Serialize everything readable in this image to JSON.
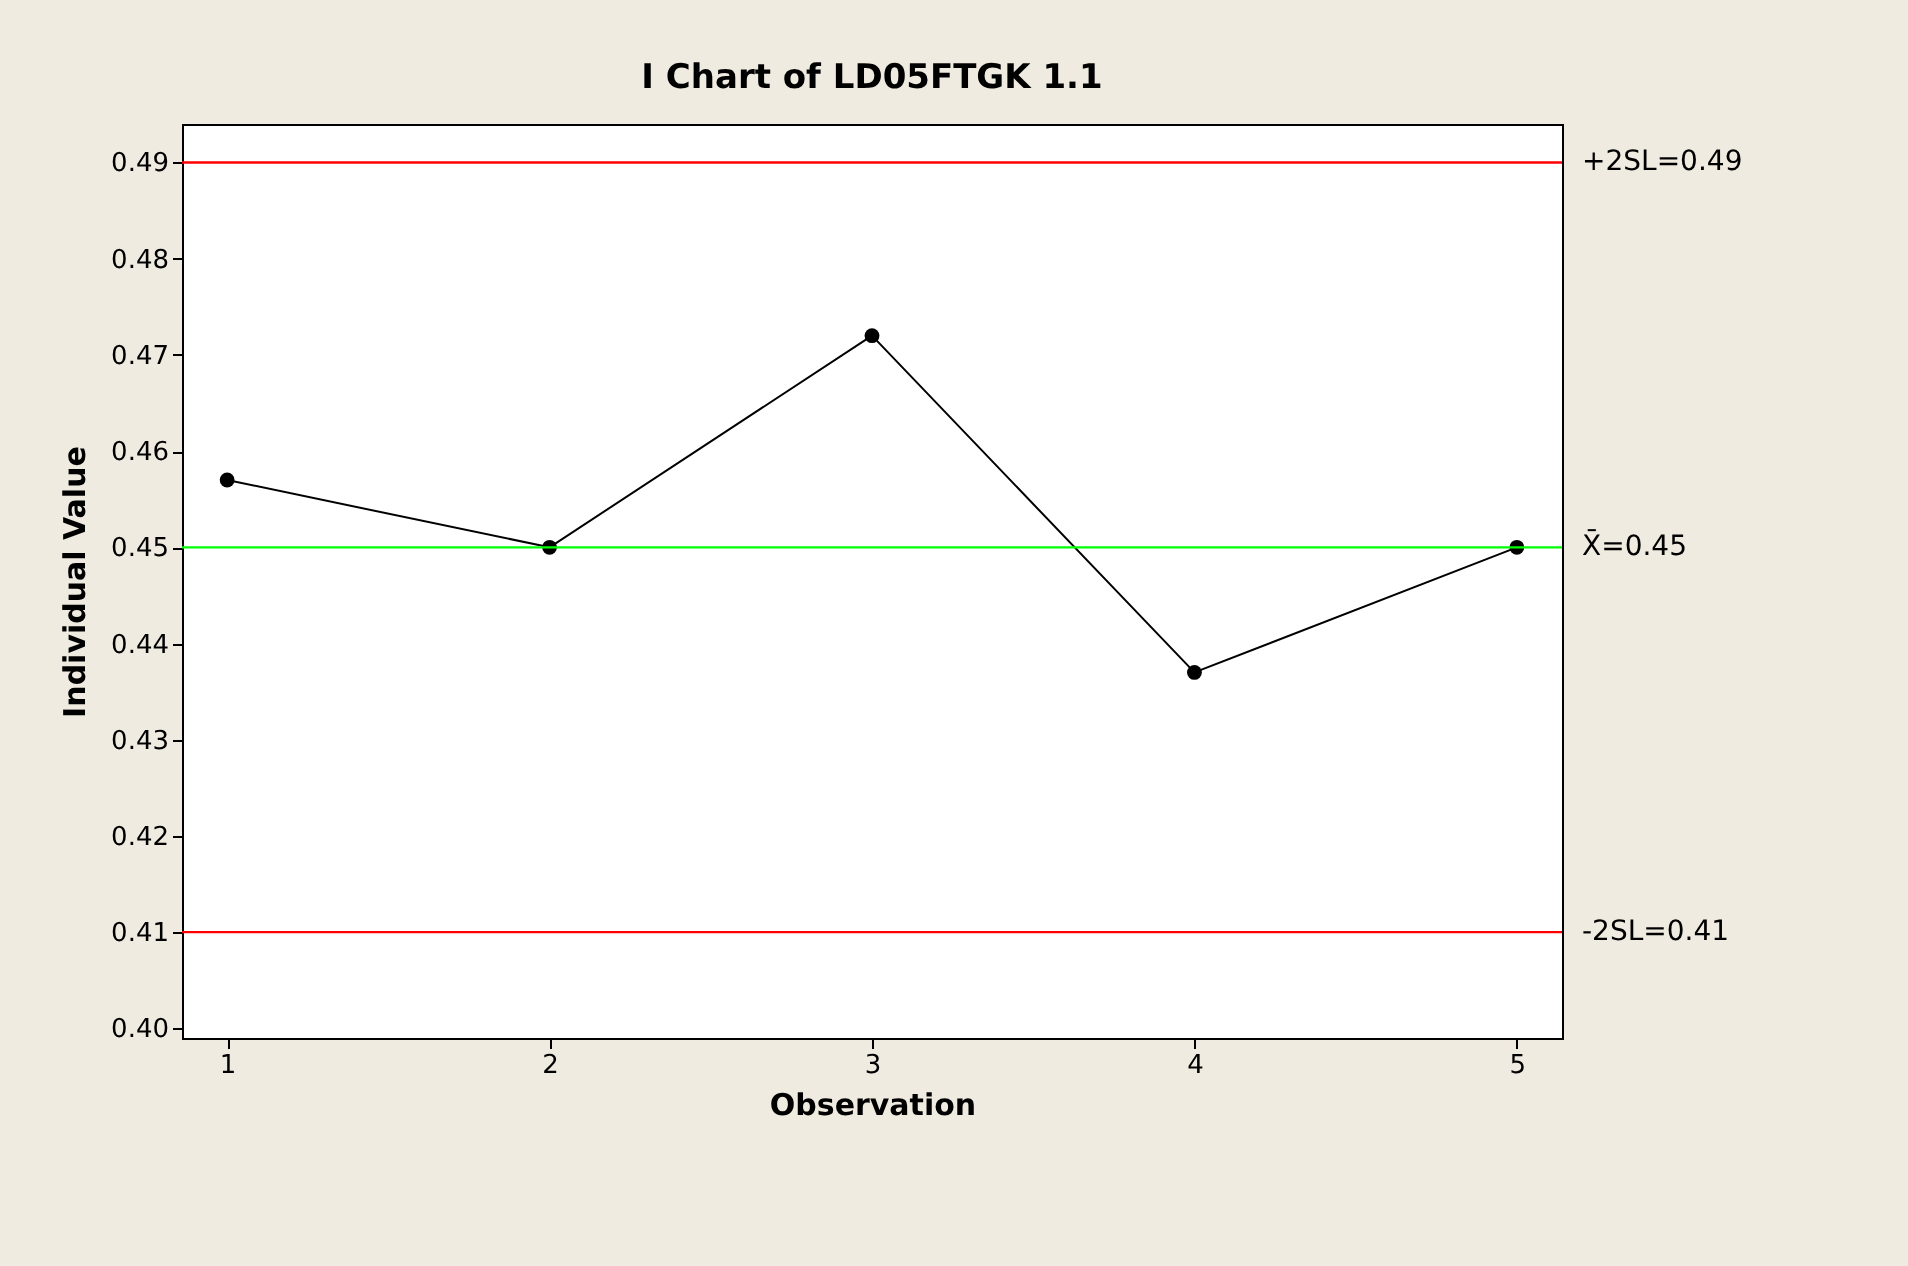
{
  "chart_data": {
    "type": "line",
    "title": "I Chart of LD05FTGK 1.1",
    "xlabel": "Observation",
    "ylabel": "Individual Value",
    "x": [
      1,
      2,
      3,
      4,
      5
    ],
    "series": [
      {
        "color": "#000000",
        "values": [
          0.457,
          0.45,
          0.472,
          0.437,
          0.45
        ]
      }
    ],
    "xlim": [
      0.86,
      5.14
    ],
    "ylim": [
      0.399,
      0.494
    ],
    "xticks": [
      1,
      2,
      3,
      4,
      5
    ],
    "yticks": [
      {
        "value": 0.4,
        "label": "0.40"
      },
      {
        "value": 0.41,
        "label": "0.41"
      },
      {
        "value": 0.42,
        "label": "0.42"
      },
      {
        "value": 0.43,
        "label": "0.43"
      },
      {
        "value": 0.44,
        "label": "0.44"
      },
      {
        "value": 0.45,
        "label": "0.45"
      },
      {
        "value": 0.46,
        "label": "0.46"
      },
      {
        "value": 0.47,
        "label": "0.47"
      },
      {
        "value": 0.48,
        "label": "0.48"
      },
      {
        "value": 0.49,
        "label": "0.49"
      }
    ],
    "ref_lines": [
      {
        "axis": "y",
        "value": 0.49,
        "label": "+2SL=0.49",
        "color": "#ff0000"
      },
      {
        "axis": "y",
        "value": 0.45,
        "label": "X̄=0.45",
        "color": "#00ff00"
      },
      {
        "axis": "y",
        "value": 0.41,
        "label": "-2SL=0.41",
        "color": "#ff0000"
      }
    ],
    "grid": false,
    "marker": "circle",
    "line_style": "solid"
  }
}
